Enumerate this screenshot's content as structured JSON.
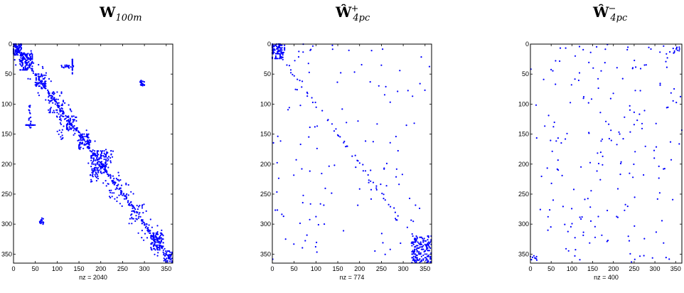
{
  "chart_data": [
    {
      "type": "scatter",
      "name": "spy-plot",
      "title": {
        "main": "W",
        "sub": "100m",
        "sup": ""
      },
      "xlabel": "nz = 2040",
      "xlim": [
        0,
        365
      ],
      "ylim": [
        0,
        365
      ],
      "xticks": [
        0,
        50,
        100,
        150,
        200,
        250,
        300,
        350
      ],
      "yticks": [
        0,
        50,
        100,
        150,
        200,
        250,
        300,
        350
      ],
      "color": "#0000ff",
      "pattern": "block-diagonal",
      "nz": 2040
    },
    {
      "type": "scatter",
      "name": "spy-plot",
      "title": {
        "main": "Ŵ",
        "sub": "4pc",
        "sup": "+"
      },
      "xlabel": "nz = 774",
      "xlim": [
        0,
        365
      ],
      "ylim": [
        0,
        365
      ],
      "xticks": [
        0,
        50,
        100,
        150,
        200,
        250,
        300,
        350
      ],
      "yticks": [
        0,
        50,
        100,
        150,
        200,
        250,
        300,
        350
      ],
      "color": "#0000ff",
      "pattern": "scattered-with-diagonal",
      "nz": 774
    },
    {
      "type": "scatter",
      "name": "spy-plot",
      "title": {
        "main": "Ŵ",
        "sub": "4pc",
        "sup": "−"
      },
      "xlabel": "nz = 400",
      "xlim": [
        0,
        365
      ],
      "ylim": [
        0,
        365
      ],
      "xticks": [
        0,
        50,
        100,
        150,
        200,
        250,
        300,
        350
      ],
      "yticks": [
        0,
        50,
        100,
        150,
        200,
        250,
        300,
        350
      ],
      "color": "#0000ff",
      "pattern": "sparse-scattered",
      "nz": 400
    }
  ]
}
